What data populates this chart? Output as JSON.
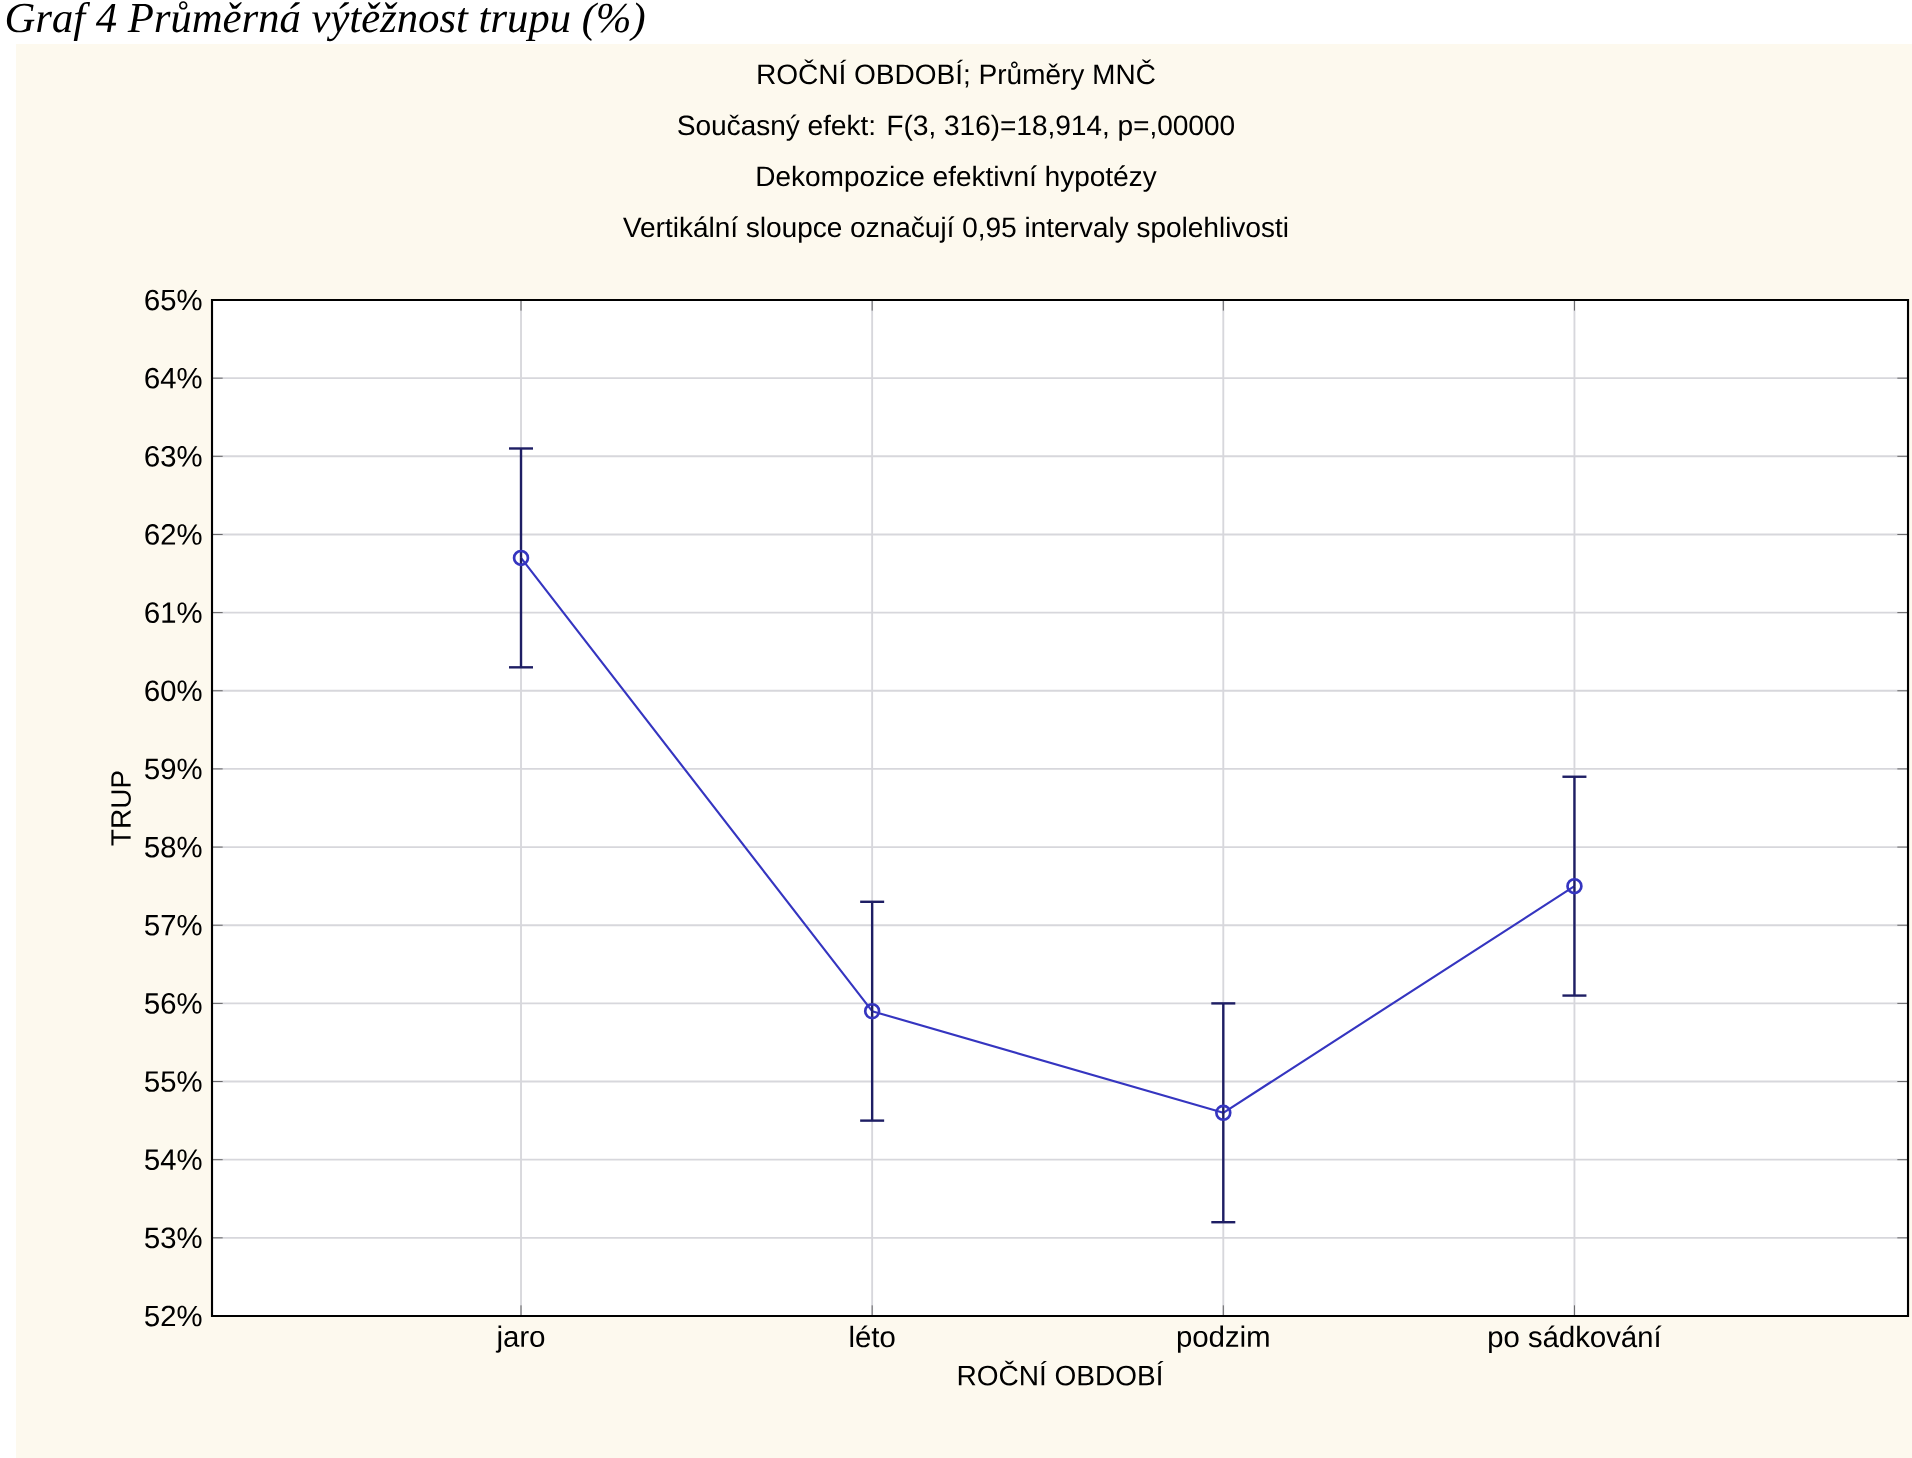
{
  "chart_data": {
    "type": "line",
    "title": "ROČNÍ OBDOBÍ; Průměry MNČ",
    "subtitle": "Současný efekt: F(3, 316)=18,914, p=,00000",
    "annotations": [
      "Graf 4 Průměrná výtěžnost trupu (%)",
      "Dekompozice efektivní hypotézy",
      "Vertikální sloupce označují 0,95 intervaly spolehlivosti"
    ],
    "xlabel": "ROČNÍ OBDOBÍ",
    "ylabel": "TRUP",
    "categories": [
      "jaro",
      "léto",
      "podzim",
      "po sádkování"
    ],
    "series": [
      {
        "color": "#3535c0",
        "values": [
          61.7,
          55.9,
          54.6,
          57.5
        ],
        "errors": [
          1.4,
          1.4,
          1.4,
          1.4
        ]
      }
    ],
    "ylim": [
      52,
      65
    ],
    "yticks": [
      {
        "value": 52,
        "label": "52%"
      },
      {
        "value": 53,
        "label": "53%"
      },
      {
        "value": 54,
        "label": "54%"
      },
      {
        "value": 55,
        "label": "55%"
      },
      {
        "value": 56,
        "label": "56%"
      },
      {
        "value": 57,
        "label": "57%"
      },
      {
        "value": 58,
        "label": "58%"
      },
      {
        "value": 59,
        "label": "59%"
      },
      {
        "value": 60,
        "label": "60%"
      },
      {
        "value": 61,
        "label": "61%"
      },
      {
        "value": 62,
        "label": "62%"
      },
      {
        "value": 63,
        "label": "63%"
      },
      {
        "value": 64,
        "label": "64%"
      },
      {
        "value": 65,
        "label": "65%"
      }
    ],
    "grid": true,
    "marker": "circle",
    "line_style": "solid"
  }
}
